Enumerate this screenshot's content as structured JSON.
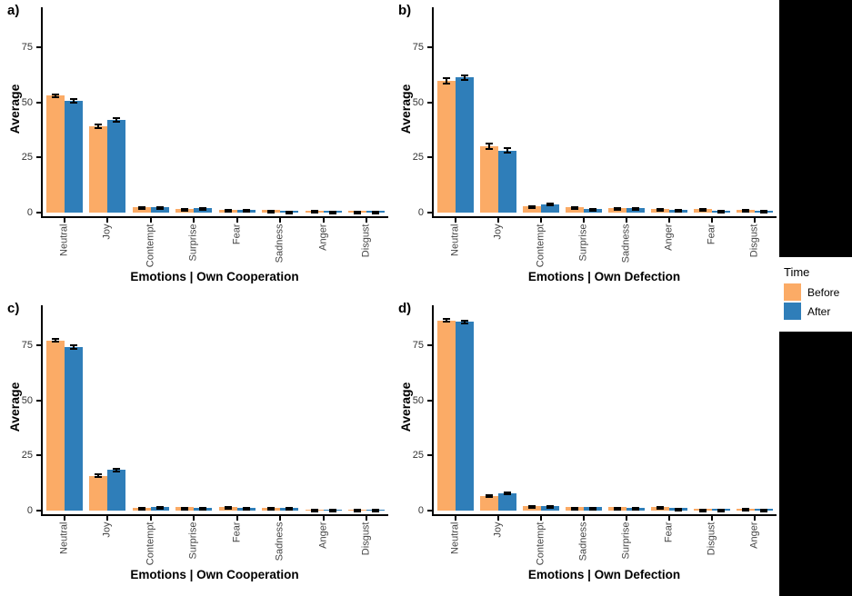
{
  "figure": {
    "ylabel": "Average",
    "legend": {
      "title": "Time",
      "items": [
        {
          "label": "Before",
          "color": "#FBAB66"
        },
        {
          "label": "After",
          "color": "#2F7EB9"
        }
      ]
    },
    "colors": {
      "axis": "#000000",
      "tick_label": "#444444",
      "fill_background": "#000000"
    }
  },
  "chart_data": [
    {
      "type": "bar",
      "panel_label": "a)",
      "xlabel": "Emotions | Own Cooperation",
      "ylabel": "Average",
      "ylim": [
        0,
        93
      ],
      "yticks": [
        0,
        25,
        50,
        75
      ],
      "grid": false,
      "legend_position": "right",
      "categories": [
        "Neutral",
        "Joy",
        "Contempt",
        "Surprise",
        "Fear",
        "Sadness",
        "Anger",
        "Disgust"
      ],
      "series": [
        {
          "name": "Before",
          "color": "#FBAB66",
          "values": [
            53.0,
            39.0,
            2.4,
            1.8,
            1.3,
            1.1,
            0.9,
            0.7
          ],
          "errors": [
            1.1,
            1.2,
            0.5,
            0.4,
            0.35,
            0.3,
            0.25,
            0.2
          ]
        },
        {
          "name": "After",
          "color": "#2F7EB9",
          "values": [
            50.8,
            42.0,
            2.3,
            2.0,
            1.3,
            0.7,
            0.7,
            0.7
          ],
          "errors": [
            1.2,
            1.3,
            0.45,
            0.45,
            0.35,
            0.2,
            0.2,
            0.2
          ]
        }
      ]
    },
    {
      "type": "bar",
      "panel_label": "b)",
      "xlabel": "Emotions | Own Defection",
      "ylabel": "Average",
      "ylim": [
        0,
        93
      ],
      "yticks": [
        0,
        25,
        50,
        75
      ],
      "grid": false,
      "legend_position": "right",
      "categories": [
        "Neutral",
        "Joy",
        "Contempt",
        "Surprise",
        "Sadness",
        "Anger",
        "Fear",
        "Disgust"
      ],
      "series": [
        {
          "name": "Before",
          "color": "#FBAB66",
          "values": [
            59.8,
            30.0,
            2.9,
            2.4,
            1.9,
            1.8,
            1.6,
            1.2
          ],
          "errors": [
            1.6,
            1.6,
            0.55,
            0.5,
            0.45,
            0.4,
            0.4,
            0.3
          ]
        },
        {
          "name": "After",
          "color": "#2F7EB9",
          "values": [
            61.2,
            28.2,
            3.8,
            1.6,
            1.9,
            1.4,
            0.9,
            1.0
          ],
          "errors": [
            1.5,
            1.6,
            0.6,
            0.4,
            0.45,
            0.35,
            0.25,
            0.3
          ]
        }
      ]
    },
    {
      "type": "bar",
      "panel_label": "c)",
      "xlabel": "Emotions | Own Cooperation",
      "ylabel": "Average",
      "ylim": [
        0,
        93
      ],
      "yticks": [
        0,
        25,
        50,
        75
      ],
      "grid": false,
      "legend_position": "right",
      "categories": [
        "Neutral",
        "Joy",
        "Contempt",
        "Surprise",
        "Fear",
        "Sadness",
        "Anger",
        "Disgust"
      ],
      "series": [
        {
          "name": "Before",
          "color": "#FBAB66",
          "values": [
            77.2,
            15.8,
            1.4,
            1.5,
            1.5,
            1.2,
            0.5,
            0.6
          ],
          "errors": [
            1.1,
            0.9,
            0.3,
            0.35,
            0.4,
            0.3,
            0.15,
            0.2
          ]
        },
        {
          "name": "After",
          "color": "#2F7EB9",
          "values": [
            74.2,
            18.5,
            1.8,
            1.4,
            1.2,
            1.2,
            0.6,
            0.6
          ],
          "errors": [
            1.1,
            1.0,
            0.4,
            0.3,
            0.3,
            0.3,
            0.15,
            0.15
          ]
        }
      ]
    },
    {
      "type": "bar",
      "panel_label": "d)",
      "xlabel": "Emotions | Own Defection",
      "ylabel": "Average",
      "ylim": [
        0,
        93
      ],
      "yticks": [
        0,
        25,
        50,
        75
      ],
      "grid": false,
      "legend_position": "right",
      "categories": [
        "Neutral",
        "Joy",
        "Contempt",
        "Sadness",
        "Surprise",
        "Fear",
        "Disgust",
        "Anger"
      ],
      "series": [
        {
          "name": "Before",
          "color": "#FBAB66",
          "values": [
            86.2,
            6.7,
            2.0,
            1.5,
            1.5,
            1.6,
            0.8,
            0.9
          ],
          "errors": [
            1.0,
            0.8,
            0.4,
            0.3,
            0.35,
            0.35,
            0.2,
            0.25
          ]
        },
        {
          "name": "After",
          "color": "#2F7EB9",
          "values": [
            85.6,
            7.8,
            2.2,
            1.5,
            1.2,
            1.1,
            0.8,
            0.7
          ],
          "errors": [
            1.0,
            0.9,
            0.4,
            0.3,
            0.3,
            0.25,
            0.2,
            0.2
          ]
        }
      ]
    }
  ]
}
